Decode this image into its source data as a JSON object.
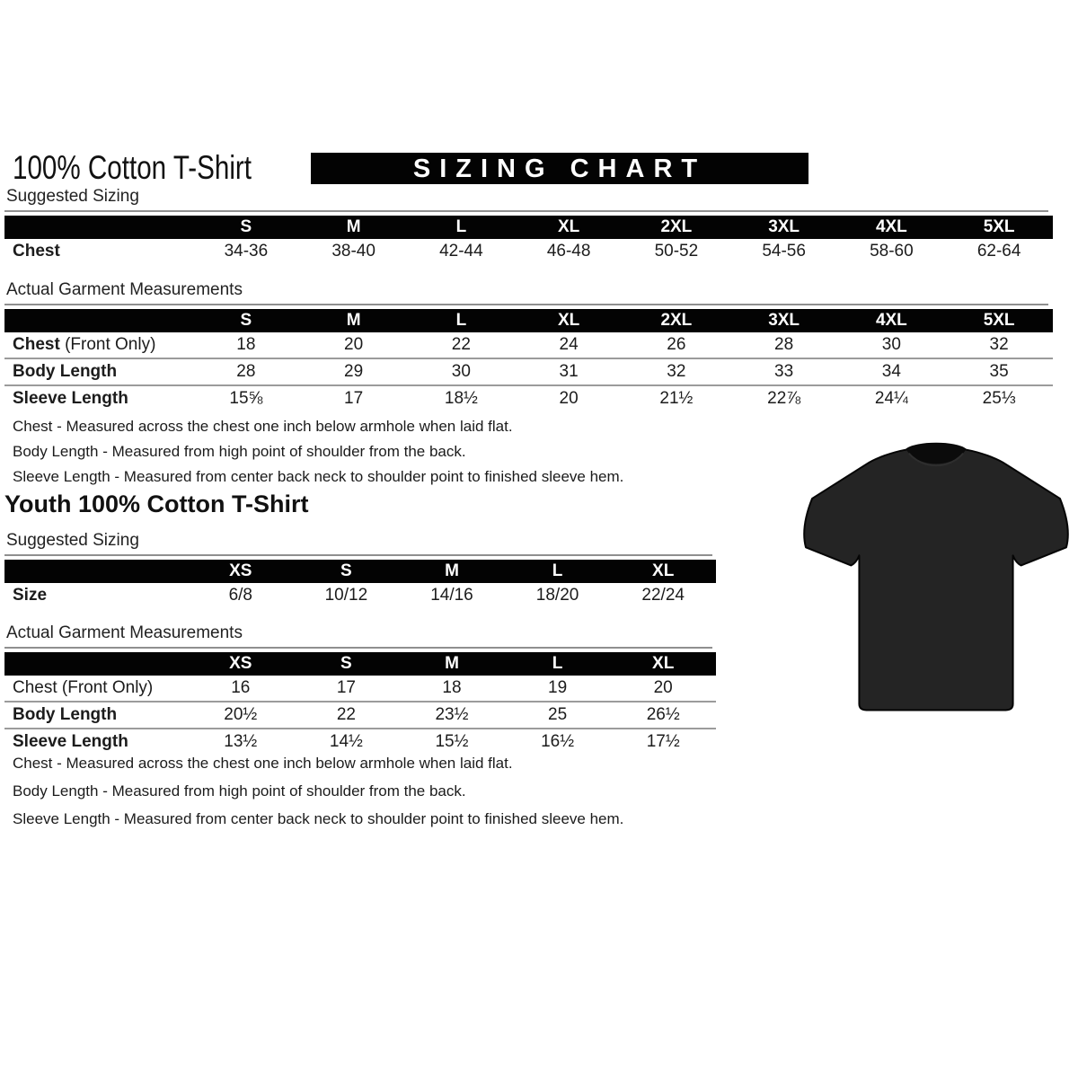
{
  "header": {
    "title": "100% Cotton T-Shirt",
    "banner": "SIZING CHART"
  },
  "adult": {
    "suggested": {
      "label": "Suggested Sizing",
      "columns": [
        "S",
        "M",
        "L",
        "XL",
        "2XL",
        "3XL",
        "4XL",
        "5XL"
      ],
      "rows": [
        {
          "label_strong": "Chest",
          "label_normal": "",
          "values": [
            "34-36",
            "38-40",
            "42-44",
            "46-48",
            "50-52",
            "54-56",
            "58-60",
            "62-64"
          ]
        }
      ]
    },
    "actual": {
      "label": "Actual Garment Measurements",
      "columns": [
        "S",
        "M",
        "L",
        "XL",
        "2XL",
        "3XL",
        "4XL",
        "5XL"
      ],
      "rows": [
        {
          "label_strong": "Chest",
          "label_normal": " (Front Only)",
          "values": [
            "18",
            "20",
            "22",
            "24",
            "26",
            "28",
            "30",
            "32"
          ]
        },
        {
          "label_strong": "Body Length",
          "label_normal": "",
          "values": [
            "28",
            "29",
            "30",
            "31",
            "32",
            "33",
            "34",
            "35"
          ]
        },
        {
          "label_strong": "Sleeve Length",
          "label_normal": "",
          "values": [
            "15⅝",
            "17",
            "18½",
            "20",
            "21½",
            "22⅞",
            "24¼",
            "25⅓"
          ]
        }
      ]
    },
    "notes": [
      "Chest - Measured across the chest one inch below armhole when laid flat.",
      "Body Length - Measured from high point of shoulder from the back.",
      "Sleeve Length - Measured from center back neck to shoulder point to finished sleeve hem."
    ]
  },
  "youth": {
    "title": "Youth 100% Cotton T-Shirt",
    "suggested": {
      "label": "Suggested Sizing",
      "columns": [
        "XS",
        "S",
        "M",
        "L",
        "XL"
      ],
      "rows": [
        {
          "label_strong": "Size",
          "label_normal": "",
          "values": [
            "6/8",
            "10/12",
            "14/16",
            "18/20",
            "22/24"
          ]
        }
      ]
    },
    "actual": {
      "label": "Actual Garment Measurements",
      "columns": [
        "XS",
        "S",
        "M",
        "L",
        "XL"
      ],
      "rows": [
        {
          "label_strong": "",
          "label_normal": "Chest (Front Only)",
          "values": [
            "16",
            "17",
            "18",
            "19",
            "20"
          ]
        },
        {
          "label_strong": "Body Length",
          "label_normal": "",
          "values": [
            "20½",
            "22",
            "23½",
            "25",
            "26½"
          ]
        },
        {
          "label_strong": "Sleeve Length",
          "label_normal": "",
          "values": [
            "13½",
            "14½",
            "15½",
            "16½",
            "17½"
          ]
        }
      ]
    },
    "notes": [
      "Chest - Measured across the chest one inch below armhole when laid flat.",
      "Body Length - Measured from high point of shoulder from the back.",
      "Sleeve Length - Measured from center back neck to shoulder point to finished sleeve hem."
    ]
  },
  "tshirt": {
    "name": "black-tshirt-photo",
    "body_color": "#242424",
    "collar_color": "#0b0b0b",
    "edge_color": "#050505"
  },
  "colors": {
    "bar_background": "#030303",
    "bar_text": "#ffffff",
    "row_separator": "#9b9b9b",
    "text": "#1a1a1a"
  }
}
